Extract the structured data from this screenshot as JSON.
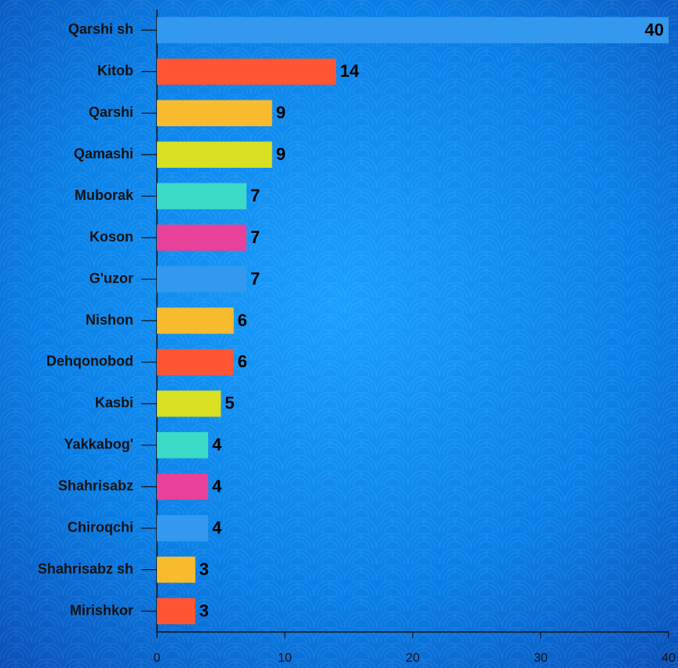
{
  "chart_data": {
    "type": "bar",
    "orientation": "horizontal",
    "categories": [
      "Qarshi sh",
      "Kitob",
      "Qarshi",
      "Qamashi",
      "Muborak",
      "Koson",
      "G'uzor",
      "Nishon",
      "Dehqonobod",
      "Kasbi",
      "Yakkabog'",
      "Shahrisabz",
      "Chiroqchi",
      "Shahrisabz sh",
      "Mirishkor"
    ],
    "values": [
      40,
      14,
      9,
      9,
      7,
      7,
      7,
      6,
      6,
      5,
      4,
      4,
      4,
      3,
      3
    ],
    "colors": [
      "#3399ee",
      "#ff5533",
      "#f8bb2e",
      "#d9e021",
      "#3bdbc8",
      "#e8419a",
      "#3399ee",
      "#f8bb2e",
      "#ff5533",
      "#d9e021",
      "#3bdbc8",
      "#e8419a",
      "#3399ee",
      "#f8bb2e",
      "#ff5533"
    ],
    "xlim": [
      0,
      40
    ],
    "xticks": [
      0,
      10,
      20,
      30,
      40
    ]
  }
}
